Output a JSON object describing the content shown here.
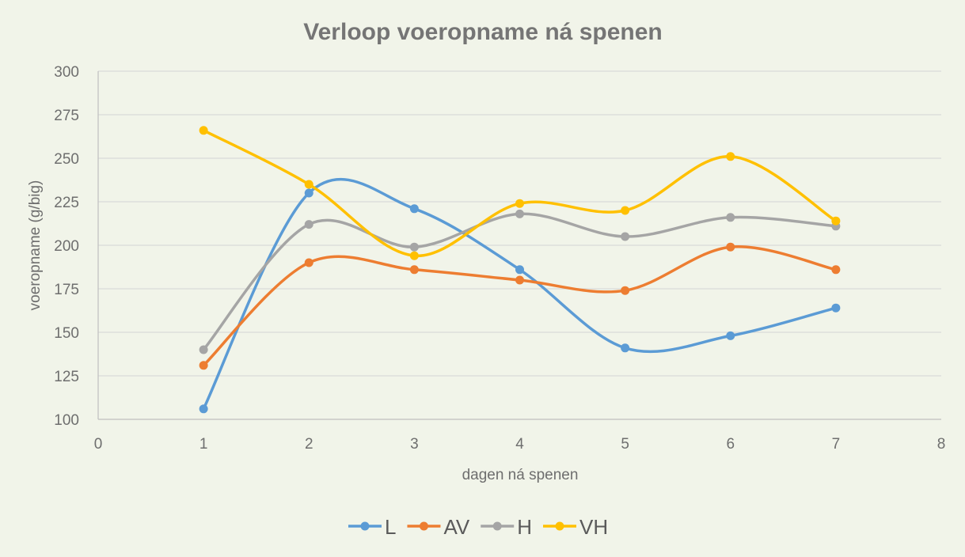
{
  "chart_data": {
    "type": "line",
    "title": "Verloop voeropname ná spenen",
    "xlabel": "dagen ná spenen",
    "ylabel": "voeropname (g/big)",
    "xlim": [
      0,
      8
    ],
    "ylim": [
      100,
      300
    ],
    "xticks": [
      0,
      1,
      2,
      3,
      4,
      5,
      6,
      7,
      8
    ],
    "yticks": [
      100,
      125,
      150,
      175,
      200,
      225,
      250,
      275,
      300
    ],
    "grid": true,
    "smooth": true,
    "legend_position": "bottom",
    "x": [
      1,
      2,
      3,
      4,
      5,
      6,
      7
    ],
    "series": [
      {
        "name": "L",
        "color": "#5b9bd5",
        "values": [
          106,
          230,
          221,
          186,
          141,
          148,
          164
        ]
      },
      {
        "name": "AV",
        "color": "#ed7d31",
        "values": [
          131,
          190,
          186,
          180,
          174,
          199,
          186
        ]
      },
      {
        "name": "H",
        "color": "#a5a5a5",
        "values": [
          140,
          212,
          199,
          218,
          205,
          216,
          211
        ]
      },
      {
        "name": "VH",
        "color": "#ffc000",
        "values": [
          266,
          235,
          194,
          224,
          220,
          251,
          214
        ]
      }
    ]
  }
}
